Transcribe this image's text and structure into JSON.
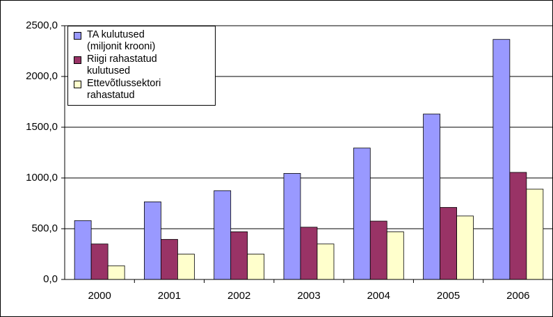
{
  "chart_data": {
    "type": "bar",
    "categories": [
      "2000",
      "2001",
      "2002",
      "2003",
      "2004",
      "2005",
      "2006"
    ],
    "series": [
      {
        "name": "TA kulutused (miljonit krooni)",
        "color": "#9999ff",
        "values": [
          580,
          765,
          875,
          1045,
          1295,
          1630,
          2365
        ]
      },
      {
        "name": "Riigi rahastatud kulutused",
        "color": "#993366",
        "values": [
          350,
          395,
          470,
          515,
          575,
          710,
          1055
        ]
      },
      {
        "name": "Ettevõtlussektori rahastatud",
        "color": "#ffffcc",
        "values": [
          135,
          250,
          250,
          350,
          470,
          625,
          890
        ]
      }
    ],
    "ylim": [
      0,
      2500
    ],
    "yticks": [
      {
        "value": 0,
        "label": "0,0"
      },
      {
        "value": 500,
        "label": "500,0"
      },
      {
        "value": 1000,
        "label": "1000,0"
      },
      {
        "value": 1500,
        "label": "1500,0"
      },
      {
        "value": 2000,
        "label": "2000,0"
      },
      {
        "value": 2500,
        "label": "2500,0"
      }
    ],
    "grid": true,
    "legend": "top-left"
  }
}
